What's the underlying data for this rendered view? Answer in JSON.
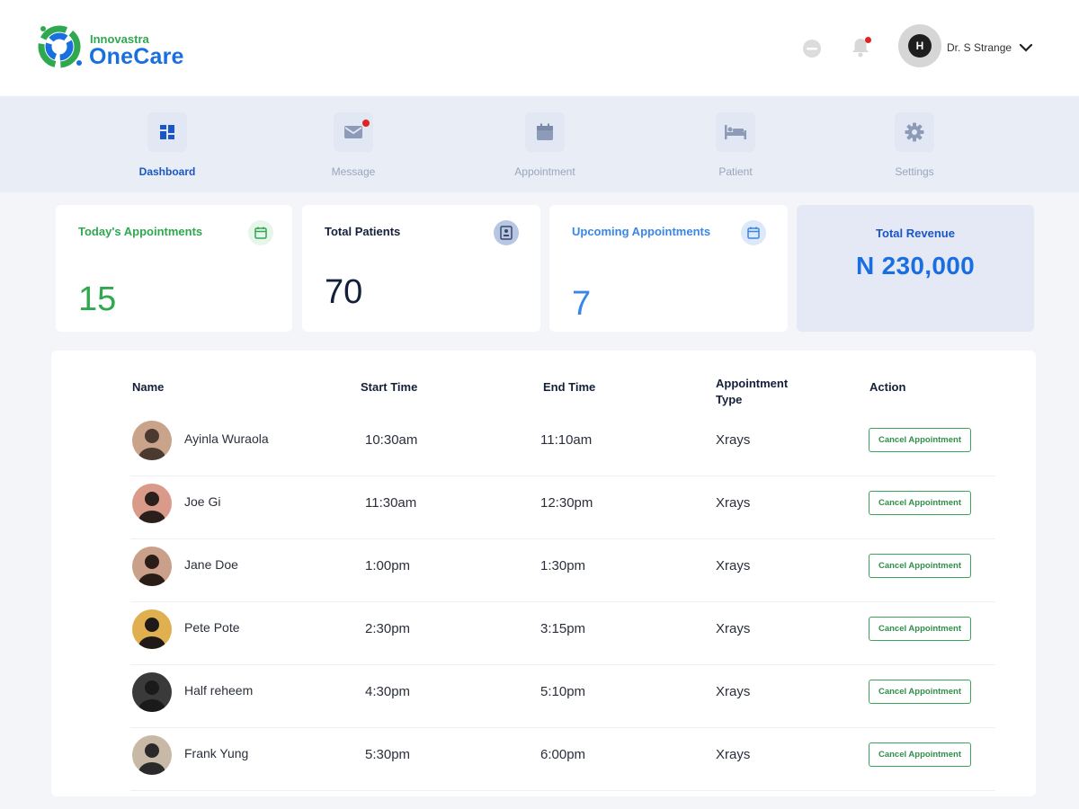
{
  "brand": {
    "company": "Innovastra",
    "product": "OneCare"
  },
  "header": {
    "user_name": "Dr. S Strange",
    "avatar_initial": "H"
  },
  "nav": [
    {
      "label": "Dashboard",
      "icon": "grid-icon",
      "active": true
    },
    {
      "label": "Message",
      "icon": "envelope-icon",
      "active": false
    },
    {
      "label": "Appointment",
      "icon": "calendar-icon",
      "active": false
    },
    {
      "label": "Patient",
      "icon": "bed-icon",
      "active": false
    },
    {
      "label": "Settings",
      "icon": "gear-icon",
      "active": false
    }
  ],
  "stats": {
    "today": {
      "title": "Today's Appointments",
      "value": "15"
    },
    "patients": {
      "title": "Total Patients",
      "value": "70"
    },
    "upcoming": {
      "title": "Upcoming Appointments",
      "value": "7"
    },
    "revenue": {
      "title": "Total Revenue",
      "value": "N 230,000"
    }
  },
  "colors": {
    "brand_blue": "#1a6fe0",
    "brand_green": "#2fa84f",
    "nav_bg": "#e8edf6",
    "revenue_bg": "#e4e9f5"
  },
  "table": {
    "headers": {
      "name": "Name",
      "start": "Start Time",
      "end": "End Time",
      "type": "Appointment Type",
      "action": "Action"
    },
    "rows": [
      {
        "name": "Ayinla Wuraola",
        "start": "10:30am",
        "end": "11:10am",
        "type": "Xrays",
        "action": "Cancel Appointment"
      },
      {
        "name": "Joe Gi",
        "start": "11:30am",
        "end": "12:30pm",
        "type": "Xrays",
        "action": "Cancel Appointment"
      },
      {
        "name": "Jane Doe",
        "start": "1:00pm",
        "end": "1:30pm",
        "type": "Xrays",
        "action": "Cancel Appointment"
      },
      {
        "name": "Pete Pote",
        "start": "2:30pm",
        "end": "3:15pm",
        "type": "Xrays",
        "action": "Cancel Appointment"
      },
      {
        "name": "Half reheem",
        "start": "4:30pm",
        "end": "5:10pm",
        "type": "Xrays",
        "action": "Cancel Appointment"
      },
      {
        "name": "Frank Yung",
        "start": "5:30pm",
        "end": "6:00pm",
        "type": "Xrays",
        "action": "Cancel Appointment"
      }
    ]
  }
}
